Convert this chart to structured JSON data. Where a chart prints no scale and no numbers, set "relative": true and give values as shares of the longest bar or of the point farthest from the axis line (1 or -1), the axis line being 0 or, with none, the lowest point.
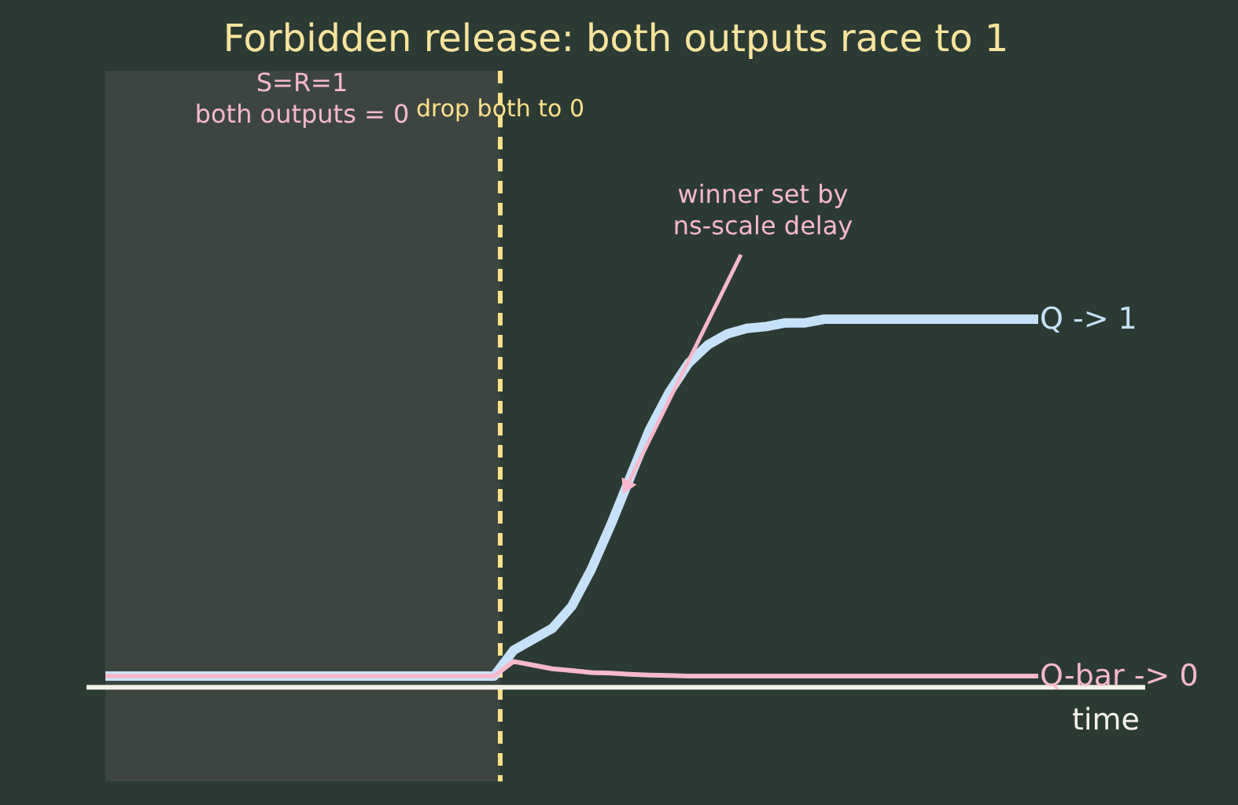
{
  "chart_data": {
    "type": "line",
    "title": "Forbidden release: both outputs race to 1",
    "xlabel": "time",
    "relative": true,
    "tick_labels": false,
    "grid": false,
    "marker": "none",
    "line_style": "solid",
    "categories": [
      null,
      null,
      null,
      null,
      null,
      null,
      null,
      null,
      null,
      null,
      null,
      null,
      null,
      null,
      null,
      null,
      null,
      null,
      null,
      null,
      null,
      null,
      null,
      null,
      null,
      null,
      null,
      null,
      null,
      null,
      null,
      null,
      null,
      null,
      null,
      null,
      null,
      null,
      null,
      null,
      null,
      null,
      null,
      null,
      null,
      null,
      null,
      null,
      null
    ],
    "series": [
      {
        "name": "Q -> 1",
        "color": "#c6e2fb",
        "values": [
          0.03,
          0.03,
          0.03,
          0.03,
          0.03,
          0.03,
          0.03,
          0.03,
          0.03,
          0.03,
          0.03,
          0.03,
          0.03,
          0.03,
          0.03,
          0.03,
          0.03,
          0.03,
          0.03,
          0.03,
          0.03,
          0.1,
          0.13,
          0.16,
          0.22,
          0.32,
          0.44,
          0.57,
          0.7,
          0.8,
          0.88,
          0.93,
          0.96,
          0.975,
          0.98,
          0.99,
          0.99,
          1,
          1,
          1,
          1,
          1,
          1,
          1,
          1,
          1,
          1,
          1,
          1
        ]
      },
      {
        "name": "Q-bar -> 0",
        "color": "#f9b8cc",
        "values": [
          0.03,
          0.03,
          0.03,
          0.03,
          0.03,
          0.03,
          0.03,
          0.03,
          0.03,
          0.03,
          0.03,
          0.03,
          0.03,
          0.03,
          0.03,
          0.03,
          0.03,
          0.03,
          0.03,
          0.03,
          0.03,
          0.07,
          0.06,
          0.05,
          0.045,
          0.04,
          0.038,
          0.035,
          0.033,
          0.032,
          0.03,
          0.03,
          0.03,
          0.03,
          0.03,
          0.03,
          0.03,
          0.03,
          0.03,
          0.03,
          0.03,
          0.03,
          0.03,
          0.03,
          0.03,
          0.03,
          0.03,
          0.03,
          0.03
        ]
      }
    ],
    "annotations": [
      "S=R=1\nboth outputs = 0",
      "drop both to 0",
      "winner set by\nns-scale delay"
    ]
  }
}
